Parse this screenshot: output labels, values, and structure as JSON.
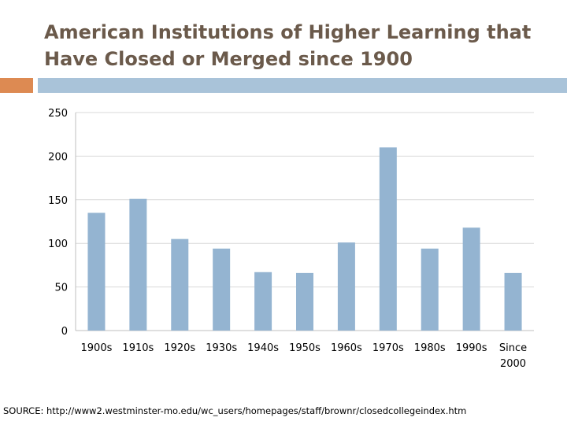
{
  "slide": {
    "title_line1": "American Institutions of Higher Learning that",
    "title_line2": "Have Closed or Merged since 1900",
    "source": "SOURCE: http://www2.westminster-mo.edu/wc_users/homepages/staff/brownr/closedcollegeindex.htm"
  },
  "colors": {
    "title": "#6b5a4b",
    "bar": "#94b4d1",
    "accent_orange": "#dd8a52",
    "accent_blue": "#a9c3d9",
    "gridline": "#d9d9d9"
  },
  "chart_data": {
    "type": "bar",
    "title": "",
    "xlabel": "",
    "ylabel": "",
    "categories": [
      "1900s",
      "1910s",
      "1920s",
      "1930s",
      "1940s",
      "1950s",
      "1960s",
      "1970s",
      "1980s",
      "1990s",
      "Since 2000"
    ],
    "values": [
      135,
      151,
      105,
      94,
      67,
      66,
      101,
      210,
      94,
      118,
      66
    ],
    "ylim": [
      0,
      250
    ],
    "yticks": [
      0,
      50,
      100,
      150,
      200,
      250
    ],
    "grid": true,
    "legend": "none"
  }
}
